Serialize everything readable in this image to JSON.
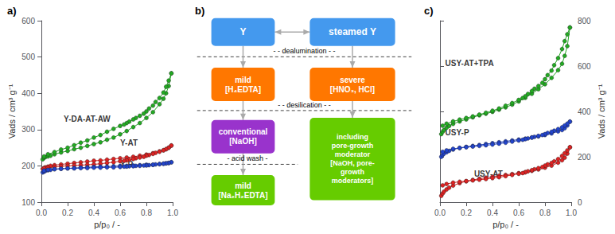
{
  "chart_data": [
    {
      "type": "line",
      "title": "a)",
      "xlabel": "p/p₀ / -",
      "ylabel": "Vads / cm³ g⁻¹",
      "xlim": [
        0.0,
        1.0
      ],
      "ylim": [
        100,
        600
      ],
      "xticks": [
        {
          "value": 0.0,
          "label": "0.0"
        },
        {
          "value": 0.2,
          "label": "0.2"
        },
        {
          "value": 0.4,
          "label": "0.4"
        },
        {
          "value": 0.6,
          "label": "0.6"
        },
        {
          "value": 0.8,
          "label": "0.8"
        },
        {
          "value": 1.0,
          "label": "1.0"
        }
      ],
      "yticks": [
        100,
        200,
        300,
        400,
        500,
        600
      ],
      "grid": false,
      "marker": "circle",
      "series": [
        {
          "color": "#22aa22",
          "x": [
            0.01,
            0.02,
            0.03,
            0.05,
            0.07,
            0.1,
            0.15,
            0.2,
            0.25,
            0.3,
            0.35,
            0.4,
            0.45,
            0.5,
            0.55,
            0.6,
            0.65,
            0.7,
            0.75,
            0.8,
            0.85,
            0.9,
            0.93,
            0.95,
            0.97,
            0.99
          ],
          "values": [
            218,
            222,
            224,
            226,
            228,
            232,
            237,
            241,
            246,
            250,
            255,
            260,
            265,
            272,
            278,
            287,
            296,
            307,
            318,
            332,
            348,
            370,
            385,
            400,
            420,
            455
          ]
        },
        {
          "color": "#22aa22",
          "x": [
            0.99,
            0.97,
            0.95,
            0.93,
            0.9,
            0.87,
            0.85,
            0.82,
            0.8,
            0.78,
            0.75,
            0.72,
            0.7,
            0.67,
            0.65,
            0.63,
            0.6,
            0.55,
            0.5,
            0.45,
            0.4,
            0.35,
            0.3,
            0.25,
            0.2,
            0.15,
            0.1,
            0.05,
            0.02
          ],
          "values": [
            455,
            435,
            418,
            402,
            387,
            376,
            366,
            358,
            350,
            344,
            338,
            332,
            328,
            322,
            318,
            314,
            310,
            302,
            294,
            285,
            278,
            270,
            264,
            257,
            250,
            245,
            238,
            232,
            226
          ]
        },
        {
          "color": "#dd2222",
          "x": [
            0.01,
            0.02,
            0.03,
            0.05,
            0.07,
            0.1,
            0.15,
            0.2,
            0.25,
            0.3,
            0.35,
            0.4,
            0.45,
            0.5,
            0.55,
            0.6,
            0.65,
            0.7,
            0.75,
            0.8,
            0.85,
            0.9,
            0.93,
            0.95,
            0.97,
            0.99
          ],
          "values": [
            192,
            194,
            196,
            198,
            200,
            202,
            204,
            206,
            208,
            210,
            212,
            214,
            215,
            217,
            219,
            221,
            223,
            225,
            228,
            231,
            235,
            240,
            243,
            246,
            250,
            256
          ]
        },
        {
          "color": "#dd2222",
          "x": [
            0.99,
            0.97,
            0.95,
            0.93,
            0.9,
            0.87,
            0.85,
            0.82,
            0.8,
            0.78,
            0.75,
            0.72,
            0.7,
            0.67,
            0.65,
            0.63,
            0.6,
            0.55,
            0.5,
            0.45,
            0.4,
            0.35,
            0.3,
            0.25,
            0.2,
            0.15,
            0.1,
            0.05,
            0.02
          ],
          "values": [
            256,
            250,
            246,
            243,
            239,
            236,
            233,
            230,
            228,
            225,
            223,
            221,
            219,
            217,
            215,
            214,
            213,
            210,
            208,
            206,
            204,
            203,
            202,
            201,
            200,
            199,
            197,
            195,
            193
          ]
        },
        {
          "color": "#2244cc",
          "x": [
            0.01,
            0.02,
            0.03,
            0.05,
            0.07,
            0.1,
            0.15,
            0.2,
            0.25,
            0.3,
            0.35,
            0.4,
            0.45,
            0.5,
            0.55,
            0.6,
            0.65,
            0.7,
            0.75,
            0.8,
            0.85,
            0.9,
            0.93,
            0.95,
            0.97,
            0.99
          ],
          "values": [
            182,
            184,
            186,
            188,
            189,
            191,
            192,
            193,
            194,
            195,
            196,
            197,
            198,
            198,
            199,
            200,
            200,
            201,
            202,
            203,
            203,
            205,
            206,
            207,
            208,
            210
          ]
        },
        {
          "color": "#2244cc",
          "x": [
            0.99,
            0.97,
            0.95,
            0.93,
            0.9,
            0.87,
            0.85,
            0.82,
            0.8,
            0.78,
            0.75,
            0.72,
            0.7,
            0.67,
            0.65,
            0.63,
            0.6,
            0.55,
            0.5,
            0.45,
            0.4,
            0.35,
            0.3,
            0.25,
            0.2,
            0.15,
            0.1,
            0.05,
            0.02
          ],
          "values": [
            210,
            208,
            207,
            206,
            205,
            204,
            203,
            202,
            201,
            201,
            200,
            200,
            199,
            199,
            198,
            198,
            197,
            196,
            196,
            195,
            195,
            194,
            194,
            193,
            193,
            192,
            191,
            189,
            187
          ]
        }
      ],
      "annotations": [
        {
          "text": "Y-DA-AT-AW",
          "x": 0.17,
          "y": 318
        },
        {
          "text": "Y-AT",
          "x": 0.6,
          "y": 252
        },
        {
          "text": "Y-P",
          "x": 0.6,
          "y": 194
        }
      ]
    },
    {
      "type": "diagram",
      "title": "b)",
      "categories": [
        "Y",
        "steamed Y",
        "mild\n[H₄EDTA]",
        "severe\n[HNO₃, HCl]",
        "conventional\n[NaOH]",
        "including\npore-growth\nmoderator\n[NaOH, pore-\ngrowth\nmoderators]",
        "mild\n[Na₂H₂EDTA]"
      ],
      "colors": [
        "#4499ee",
        "#4499ee",
        "#ff7700",
        "#ff7700",
        "#9933cc",
        "#66cc00",
        "#66cc00"
      ],
      "annotations": [
        "- - dealumination - -",
        "- - desilication - -",
        "- acid wash -"
      ]
    },
    {
      "type": "line",
      "title": "c)",
      "xlabel": "p/p₀ / -",
      "ylabel": "Vads / cm³ g⁻¹",
      "xlim": [
        0.0,
        1.0
      ],
      "ylim": [
        0,
        800
      ],
      "xticks": [
        {
          "value": 0.0,
          "label": "0.0"
        },
        {
          "value": 0.2,
          "label": "0.2"
        },
        {
          "value": 0.4,
          "label": "0.4"
        },
        {
          "value": 0.6,
          "label": "0.6"
        },
        {
          "value": 0.8,
          "label": "0.8"
        },
        {
          "value": 1.0,
          "label": "1.0"
        }
      ],
      "yticks": [
        0,
        200,
        400,
        600,
        800
      ],
      "grid": false,
      "marker": "circle",
      "series": [
        {
          "color": "#22aa22",
          "x": [
            0.01,
            0.02,
            0.03,
            0.05,
            0.07,
            0.1,
            0.15,
            0.2,
            0.25,
            0.3,
            0.35,
            0.4,
            0.45,
            0.5,
            0.55,
            0.6,
            0.65,
            0.7,
            0.75,
            0.8,
            0.85,
            0.9,
            0.93,
            0.95,
            0.97,
            0.99
          ],
          "values": [
            300,
            310,
            318,
            328,
            336,
            345,
            356,
            365,
            374,
            383,
            390,
            398,
            408,
            418,
            430,
            444,
            460,
            478,
            498,
            520,
            548,
            582,
            610,
            645,
            688,
            770
          ]
        },
        {
          "color": "#22aa22",
          "x": [
            0.99,
            0.97,
            0.95,
            0.93,
            0.9,
            0.87,
            0.85,
            0.82,
            0.8,
            0.78,
            0.75,
            0.72,
            0.7,
            0.67,
            0.65,
            0.63,
            0.6,
            0.55,
            0.5,
            0.45,
            0.4,
            0.35,
            0.3,
            0.25,
            0.2,
            0.15,
            0.1,
            0.05,
            0.02
          ],
          "values": [
            770,
            740,
            710,
            675,
            635,
            604,
            580,
            560,
            542,
            526,
            512,
            500,
            490,
            477,
            467,
            459,
            451,
            437,
            425,
            413,
            403,
            394,
            386,
            378,
            371,
            364,
            356,
            346,
            337
          ]
        },
        {
          "color": "#2244cc",
          "x": [
            0.01,
            0.02,
            0.03,
            0.05,
            0.07,
            0.1,
            0.15,
            0.2,
            0.25,
            0.3,
            0.35,
            0.4,
            0.45,
            0.5,
            0.55,
            0.6,
            0.65,
            0.7,
            0.75,
            0.8,
            0.85,
            0.9,
            0.93,
            0.95,
            0.97,
            0.99
          ],
          "values": [
            200,
            208,
            214,
            220,
            226,
            232,
            239,
            244,
            248,
            252,
            256,
            260,
            264,
            268,
            272,
            276,
            280,
            285,
            290,
            296,
            303,
            312,
            318,
            326,
            338,
            355
          ]
        },
        {
          "color": "#2244cc",
          "x": [
            0.99,
            0.97,
            0.95,
            0.93,
            0.9,
            0.87,
            0.85,
            0.82,
            0.8,
            0.78,
            0.75,
            0.72,
            0.7,
            0.67,
            0.65,
            0.63,
            0.6,
            0.55,
            0.5,
            0.45,
            0.4,
            0.35,
            0.3,
            0.25,
            0.2,
            0.15,
            0.1,
            0.05,
            0.02
          ],
          "values": [
            355,
            346,
            338,
            330,
            322,
            315,
            310,
            305,
            300,
            296,
            292,
            288,
            285,
            281,
            278,
            275,
            272,
            267,
            262,
            258,
            254,
            251,
            248,
            245,
            242,
            239,
            235,
            228,
            222
          ]
        },
        {
          "color": "#dd2222",
          "x": [
            0.01,
            0.02,
            0.03,
            0.05,
            0.07,
            0.1,
            0.15,
            0.2,
            0.25,
            0.3,
            0.35,
            0.4,
            0.45,
            0.5,
            0.55,
            0.6,
            0.65,
            0.7,
            0.75,
            0.8,
            0.85,
            0.9,
            0.93,
            0.95,
            0.97,
            0.99
          ],
          "values": [
            28,
            38,
            46,
            56,
            64,
            73,
            84,
            92,
            98,
            103,
            108,
            112,
            116,
            120,
            124,
            128,
            132,
            138,
            144,
            152,
            161,
            174,
            185,
            196,
            214,
            242
          ]
        },
        {
          "color": "#dd2222",
          "x": [
            0.99,
            0.97,
            0.95,
            0.93,
            0.9,
            0.87,
            0.85,
            0.82,
            0.8,
            0.78,
            0.75,
            0.72,
            0.7,
            0.67,
            0.65,
            0.63,
            0.6,
            0.55,
            0.5,
            0.45,
            0.4,
            0.35,
            0.3,
            0.25,
            0.2,
            0.15,
            0.1,
            0.05,
            0.02
          ],
          "values": [
            242,
            228,
            216,
            204,
            190,
            180,
            173,
            167,
            161,
            155,
            150,
            145,
            141,
            136,
            132,
            128,
            125,
            120,
            115,
            110,
            106,
            102,
            99,
            96,
            93,
            90,
            86,
            80,
            74
          ]
        }
      ],
      "annotations": [
        {
          "text": "USY-AT+TPA",
          "x": 0.04,
          "y": 595
        },
        {
          "text": "USY-P",
          "x": 0.04,
          "y": 290
        },
        {
          "text": "USY-AT",
          "x": 0.26,
          "y": 108
        }
      ]
    }
  ]
}
